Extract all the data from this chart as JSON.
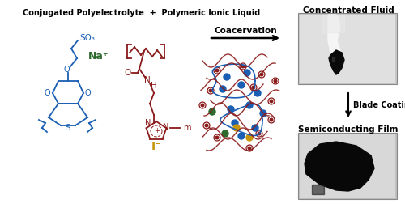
{
  "title_text": "Conjugated Polyelectrolyte  +  Polymeric Ionic Liquid",
  "title_color": "#000000",
  "title_fontsize": 7.0,
  "coacervation_text": "Coacervation",
  "coacervation_fontsize": 7.5,
  "blade_coating_text": "Blade Coating",
  "blade_coating_fontsize": 7.0,
  "concentrated_fluid_text": "Concentrated Fluid",
  "concentrated_fluid_fontsize": 7.5,
  "semiconducting_film_text": "Semiconducting Film",
  "semiconducting_film_fontsize": 7.5,
  "so3_text": "SO₃⁻",
  "na_text": "Na⁺",
  "i_text": "I⁻",
  "blue_color": "#1a5fb4",
  "dark_red_color": "#8B1A1A",
  "green_color": "#2d6a2d",
  "gold_color": "#c8960c",
  "red_dot_color": "#CC0000",
  "blue_dot_color": "#1a5fb4",
  "green_dot_color": "#2d6a2d",
  "gold_dot_color": "#c8960c",
  "bg_color": "#ffffff"
}
